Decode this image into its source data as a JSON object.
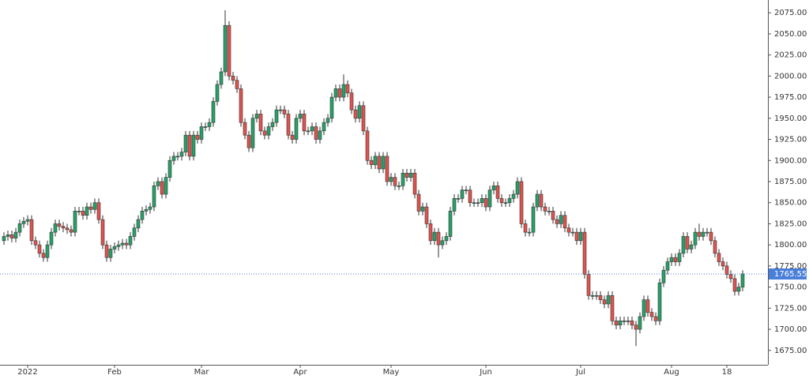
{
  "chart_data": {
    "type": "candlestick",
    "categories": [
      null,
      null,
      null,
      null,
      null,
      null,
      "2022",
      null,
      null,
      null,
      null,
      null,
      null,
      null,
      null,
      null,
      null,
      null,
      null,
      null,
      null,
      null,
      null,
      null,
      null,
      null,
      null,
      null,
      "Feb",
      null,
      null,
      null,
      null,
      null,
      null,
      null,
      null,
      null,
      null,
      null,
      null,
      null,
      null,
      null,
      null,
      null,
      null,
      null,
      null,
      null,
      "Mar",
      null,
      null,
      null,
      null,
      null,
      null,
      null,
      null,
      null,
      null,
      null,
      null,
      null,
      null,
      null,
      null,
      null,
      null,
      null,
      null,
      null,
      null,
      null,
      null,
      "Apr",
      null,
      null,
      null,
      null,
      null,
      null,
      null,
      null,
      null,
      null,
      null,
      null,
      null,
      null,
      null,
      null,
      null,
      null,
      null,
      null,
      null,
      null,
      "May",
      null,
      null,
      null,
      null,
      null,
      null,
      null,
      null,
      null,
      null,
      null,
      null,
      null,
      null,
      null,
      null,
      null,
      null,
      null,
      null,
      null,
      null,
      null,
      "Jun",
      null,
      null,
      null,
      null,
      null,
      null,
      null,
      null,
      null,
      null,
      null,
      null,
      null,
      null,
      null,
      null,
      null,
      null,
      null,
      null,
      null,
      null,
      null,
      "Jul",
      null,
      null,
      null,
      null,
      null,
      null,
      null,
      null,
      null,
      null,
      null,
      null,
      null,
      null,
      null,
      null,
      null,
      null,
      null,
      null,
      null,
      null,
      "Aug",
      null,
      null,
      null,
      null,
      null,
      null,
      null,
      null,
      null,
      null,
      null,
      null,
      null,
      "18",
      null,
      null,
      null,
      null
    ],
    "open": [
      1805,
      1810,
      1812,
      1808,
      1815,
      1825,
      1828,
      1830,
      1805,
      1800,
      1790,
      1785,
      1800,
      1815,
      1825,
      1822,
      1820,
      1818,
      1815,
      1840,
      1840,
      1835,
      1845,
      1842,
      1850,
      1830,
      1800,
      1785,
      1795,
      1798,
      1800,
      1802,
      1800,
      1810,
      1820,
      1830,
      1840,
      1842,
      1845,
      1870,
      1875,
      1860,
      1880,
      1900,
      1905,
      1905,
      1910,
      1930,
      1905,
      1930,
      1925,
      1940,
      1940,
      1945,
      1970,
      1990,
      2005,
      2060,
      2000,
      1995,
      1985,
      1945,
      1930,
      1915,
      1950,
      1955,
      1935,
      1930,
      1940,
      1945,
      1960,
      1960,
      1955,
      1930,
      1925,
      1950,
      1955,
      1935,
      1935,
      1940,
      1925,
      1935,
      1945,
      1950,
      1975,
      1985,
      1975,
      1990,
      1980,
      1960,
      1950,
      1965,
      1935,
      1900,
      1895,
      1905,
      1890,
      1905,
      1875,
      1880,
      1870,
      1870,
      1885,
      1880,
      1885,
      1860,
      1840,
      1845,
      1825,
      1805,
      1815,
      1800,
      1805,
      1810,
      1840,
      1855,
      1855,
      1865,
      1865,
      1850,
      1850,
      1850,
      1855,
      1845,
      1865,
      1870,
      1855,
      1850,
      1850,
      1855,
      1860,
      1875,
      1825,
      1815,
      1815,
      1845,
      1860,
      1845,
      1840,
      1840,
      1830,
      1825,
      1835,
      1820,
      1815,
      1815,
      1805,
      1815,
      1765,
      1740,
      1740,
      1740,
      1735,
      1730,
      1740,
      1710,
      1705,
      1710,
      1710,
      1710,
      1705,
      1700,
      1715,
      1735,
      1720,
      1715,
      1710,
      1755,
      1770,
      1780,
      1785,
      1780,
      1790,
      1810,
      1795,
      1800,
      1815,
      1810,
      1815,
      1815,
      1805,
      1790,
      1780,
      1775,
      1765,
      1760,
      1745,
      1750
    ],
    "high": [
      1815,
      1817,
      1817,
      1820,
      1830,
      1833,
      1835,
      1835,
      1810,
      1805,
      1795,
      1805,
      1820,
      1830,
      1830,
      1827,
      1825,
      1823,
      1845,
      1845,
      1845,
      1850,
      1850,
      1855,
      1855,
      1835,
      1805,
      1800,
      1803,
      1805,
      1807,
      1807,
      1815,
      1825,
      1835,
      1845,
      1847,
      1850,
      1875,
      1880,
      1880,
      1885,
      1905,
      1910,
      1910,
      1915,
      1935,
      1935,
      1935,
      1935,
      1945,
      1945,
      1950,
      1975,
      1995,
      2010,
      2078,
      2065,
      2005,
      2000,
      1990,
      1950,
      1935,
      1955,
      1960,
      1960,
      1940,
      1945,
      1950,
      1965,
      1965,
      1965,
      1960,
      1935,
      1955,
      1960,
      1960,
      1940,
      1945,
      1945,
      1940,
      1950,
      1955,
      1980,
      1990,
      1990,
      2002,
      1995,
      1985,
      1965,
      1970,
      1970,
      1940,
      1905,
      1910,
      1910,
      1910,
      1910,
      1885,
      1885,
      1875,
      1890,
      1890,
      1890,
      1890,
      1865,
      1850,
      1850,
      1830,
      1820,
      1820,
      1810,
      1815,
      1845,
      1860,
      1860,
      1870,
      1870,
      1870,
      1855,
      1855,
      1860,
      1860,
      1870,
      1875,
      1875,
      1860,
      1855,
      1860,
      1865,
      1880,
      1880,
      1830,
      1820,
      1850,
      1865,
      1865,
      1850,
      1845,
      1845,
      1835,
      1840,
      1840,
      1825,
      1820,
      1820,
      1820,
      1820,
      1770,
      1745,
      1745,
      1745,
      1740,
      1745,
      1745,
      1715,
      1715,
      1715,
      1715,
      1715,
      1710,
      1720,
      1740,
      1740,
      1725,
      1720,
      1760,
      1775,
      1785,
      1790,
      1790,
      1795,
      1815,
      1815,
      1805,
      1820,
      1825,
      1820,
      1820,
      1820,
      1810,
      1795,
      1785,
      1780,
      1770,
      1765,
      1755,
      1770
    ],
    "low": [
      1800,
      1805,
      1803,
      1803,
      1810,
      1820,
      1823,
      1800,
      1795,
      1785,
      1780,
      1780,
      1795,
      1810,
      1817,
      1815,
      1813,
      1810,
      1810,
      1835,
      1830,
      1830,
      1837,
      1837,
      1825,
      1795,
      1780,
      1780,
      1790,
      1793,
      1795,
      1795,
      1795,
      1805,
      1815,
      1825,
      1835,
      1837,
      1840,
      1865,
      1855,
      1855,
      1875,
      1895,
      1900,
      1900,
      1905,
      1900,
      1900,
      1920,
      1920,
      1935,
      1935,
      1940,
      1965,
      1985,
      2000,
      1995,
      1990,
      1980,
      1940,
      1925,
      1910,
      1910,
      1945,
      1930,
      1925,
      1925,
      1935,
      1940,
      1955,
      1950,
      1925,
      1920,
      1920,
      1945,
      1930,
      1930,
      1930,
      1920,
      1920,
      1930,
      1940,
      1945,
      1970,
      1970,
      1970,
      1975,
      1955,
      1945,
      1945,
      1930,
      1895,
      1890,
      1890,
      1885,
      1885,
      1870,
      1870,
      1865,
      1865,
      1865,
      1875,
      1875,
      1855,
      1835,
      1835,
      1820,
      1800,
      1800,
      1785,
      1795,
      1800,
      1805,
      1835,
      1850,
      1850,
      1860,
      1845,
      1845,
      1845,
      1845,
      1840,
      1840,
      1860,
      1850,
      1845,
      1845,
      1845,
      1850,
      1855,
      1820,
      1810,
      1810,
      1810,
      1840,
      1840,
      1835,
      1835,
      1825,
      1820,
      1820,
      1815,
      1810,
      1810,
      1800,
      1800,
      1760,
      1735,
      1735,
      1735,
      1730,
      1725,
      1725,
      1705,
      1700,
      1700,
      1705,
      1705,
      1700,
      1680,
      1695,
      1710,
      1715,
      1710,
      1705,
      1705,
      1750,
      1765,
      1775,
      1775,
      1775,
      1785,
      1790,
      1790,
      1795,
      1805,
      1805,
      1810,
      1800,
      1785,
      1775,
      1770,
      1760,
      1755,
      1740,
      1740,
      1745
    ],
    "close": [
      1810,
      1812,
      1808,
      1815,
      1825,
      1828,
      1830,
      1805,
      1800,
      1790,
      1785,
      1800,
      1815,
      1825,
      1822,
      1820,
      1818,
      1815,
      1840,
      1840,
      1835,
      1845,
      1842,
      1850,
      1830,
      1800,
      1785,
      1795,
      1798,
      1800,
      1802,
      1800,
      1810,
      1820,
      1830,
      1840,
      1842,
      1845,
      1870,
      1875,
      1860,
      1880,
      1900,
      1905,
      1905,
      1910,
      1930,
      1905,
      1930,
      1925,
      1940,
      1940,
      1945,
      1970,
      1990,
      2005,
      2060,
      2000,
      1995,
      1985,
      1945,
      1930,
      1915,
      1950,
      1955,
      1935,
      1930,
      1940,
      1945,
      1960,
      1960,
      1955,
      1930,
      1925,
      1950,
      1955,
      1935,
      1935,
      1940,
      1925,
      1935,
      1945,
      1950,
      1975,
      1985,
      1975,
      1990,
      1980,
      1960,
      1950,
      1965,
      1935,
      1900,
      1895,
      1905,
      1890,
      1905,
      1875,
      1880,
      1870,
      1870,
      1885,
      1880,
      1885,
      1860,
      1840,
      1845,
      1825,
      1805,
      1815,
      1800,
      1805,
      1810,
      1840,
      1855,
      1855,
      1865,
      1865,
      1850,
      1850,
      1850,
      1855,
      1845,
      1865,
      1870,
      1855,
      1850,
      1850,
      1855,
      1860,
      1875,
      1825,
      1815,
      1815,
      1845,
      1860,
      1845,
      1840,
      1840,
      1830,
      1825,
      1835,
      1820,
      1815,
      1815,
      1805,
      1815,
      1765,
      1740,
      1740,
      1740,
      1735,
      1730,
      1740,
      1710,
      1705,
      1710,
      1710,
      1710,
      1705,
      1700,
      1715,
      1735,
      1720,
      1715,
      1710,
      1755,
      1770,
      1780,
      1785,
      1780,
      1790,
      1810,
      1795,
      1800,
      1815,
      1810,
      1815,
      1815,
      1805,
      1790,
      1780,
      1775,
      1765,
      1760,
      1745,
      1750,
      1765.55
    ],
    "last_price": 1765.55,
    "up_color": "#26a269",
    "down_color": "#e0534f",
    "price_line_color": "#4a7fd9",
    "ylim": [
      1657.94,
      2090.14
    ],
    "yticks": [
      {
        "value": 1675,
        "label": "1675.00"
      },
      {
        "value": 1700,
        "label": "1700.00"
      },
      {
        "value": 1725,
        "label": "1725.00"
      },
      {
        "value": 1750,
        "label": "1750.00"
      },
      {
        "value": 1775,
        "label": "1775.00"
      },
      {
        "value": 1800,
        "label": "1800.00"
      },
      {
        "value": 1825,
        "label": "1825.00"
      },
      {
        "value": 1850,
        "label": "1850.00"
      },
      {
        "value": 1875,
        "label": "1875.00"
      },
      {
        "value": 1900,
        "label": "1900.00"
      },
      {
        "value": 1925,
        "label": "1925.00"
      },
      {
        "value": 1950,
        "label": "1950.00"
      },
      {
        "value": 1975,
        "label": "1975.00"
      },
      {
        "value": 2000,
        "label": "2000.00"
      },
      {
        "value": 2025,
        "label": "2025.00"
      },
      {
        "value": 2050,
        "label": "2050.00"
      },
      {
        "value": 2075,
        "label": "2075.00"
      }
    ]
  }
}
